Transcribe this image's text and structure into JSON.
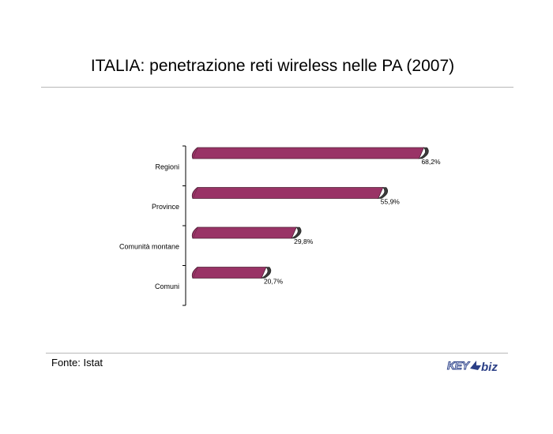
{
  "header": {
    "title": "ITALIA: penetrazione reti wireless nelle PA (2007)"
  },
  "footer": {
    "source": "Fonte: Istat",
    "logo_text": "KEY4biz"
  },
  "colors": {
    "bar_face": "#993366",
    "bar_dark": "#4d2035",
    "bar_end": "#3a3a3a",
    "axis": "#000000",
    "rule": "#b8b8b8",
    "logo_blue": "#2b3f86"
  },
  "chart_data": {
    "type": "bar",
    "orientation": "horizontal",
    "style": "3d-cylinder",
    "categories": [
      "Regioni",
      "Province",
      "Comunità montane",
      "Comuni"
    ],
    "values": [
      68.2,
      55.9,
      29.8,
      20.7
    ],
    "data_labels": [
      "68,2%",
      "55,9%",
      "29,8%",
      "20,7%"
    ],
    "unit": "%",
    "xlim": [
      0,
      70
    ],
    "grid": false,
    "legend": "none"
  }
}
